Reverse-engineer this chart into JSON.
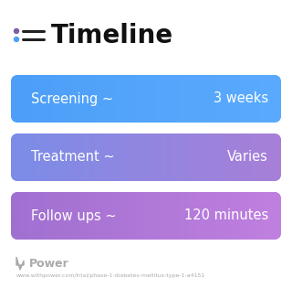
{
  "title": "Timeline",
  "title_fontsize": 20,
  "title_fontweight": "bold",
  "background_color": "#ffffff",
  "bars": [
    {
      "label": "Screening ~",
      "value": "3 weeks",
      "color_left": "#4d9ef7",
      "color_right": "#5aabff"
    },
    {
      "label": "Treatment ~",
      "value": "Varies",
      "color_left": "#7b8de8",
      "color_right": "#a87fd8"
    },
    {
      "label": "Follow ups ~",
      "value": "120 minutes",
      "color_left": "#a070d0",
      "color_right": "#c080e0"
    }
  ],
  "bar_text_color": "#ffffff",
  "bar_text_fontsize": 10.5,
  "footer_text": "Power",
  "footer_url": "www.withpower.com/trial/phase-1-diabetes-mellitus-type-1-a4151",
  "footer_color": "#aaaaaa",
  "icon_color_top": "#7b5ea7",
  "icon_color_bottom": "#4d9ef7"
}
